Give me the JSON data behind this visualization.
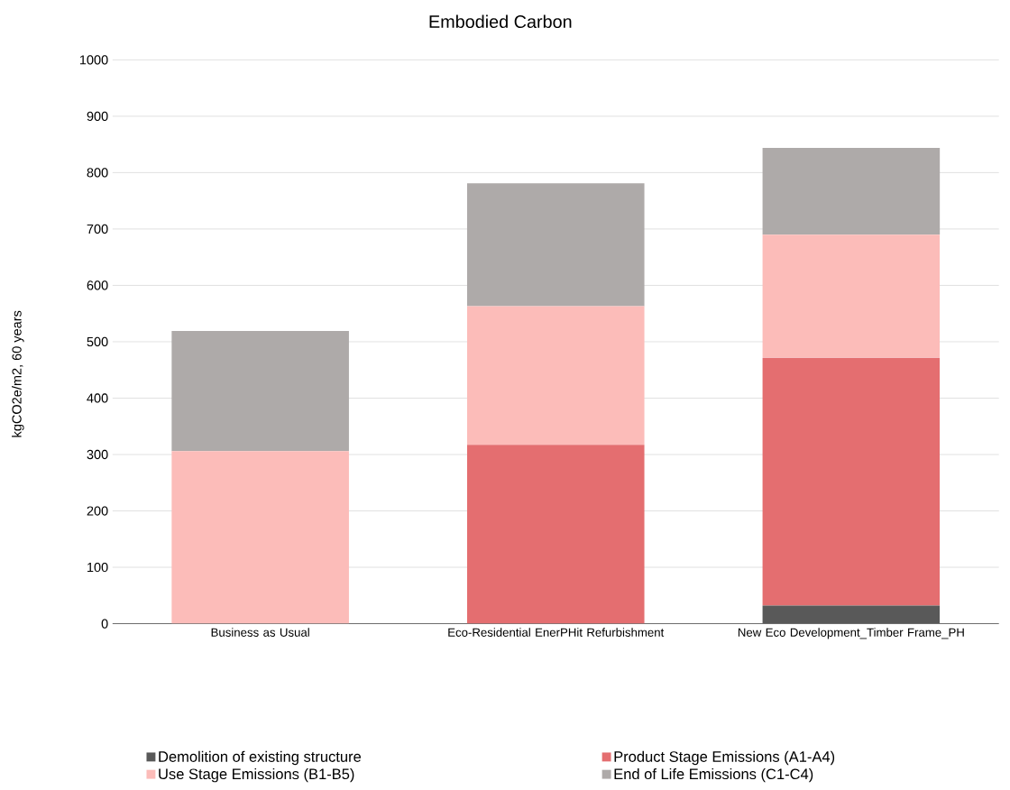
{
  "chart_data": {
    "type": "bar",
    "title": "Embodied Carbon",
    "ylabel": "kgCO2e/m2, 60 years",
    "categories": [
      "Business as Usual",
      "Eco-Residential EnerPHit Refurbishment",
      "New Eco Development_Timber Frame_PH"
    ],
    "stacked": true,
    "series": [
      {
        "name": "Demolition of existing structure",
        "color": "#595959",
        "values": [
          0,
          0,
          32
        ]
      },
      {
        "name": "Product Stage Emissions (A1-A4)",
        "color": "#e46e70",
        "values": [
          0,
          317,
          440
        ]
      },
      {
        "name": "Use Stage Emissions (B1-B5)",
        "color": "#fcbcb9",
        "values": [
          306,
          246,
          218
        ]
      },
      {
        "name": "End of Life Emissions (C1-C4)",
        "color": "#aeaaa9",
        "values": [
          213,
          218,
          154
        ]
      }
    ],
    "ylim": [
      0,
      1000
    ],
    "yticks": [
      0,
      100,
      200,
      300,
      400,
      500,
      600,
      700,
      800,
      900,
      1000
    ],
    "grid": "y",
    "legend": "bottom"
  }
}
